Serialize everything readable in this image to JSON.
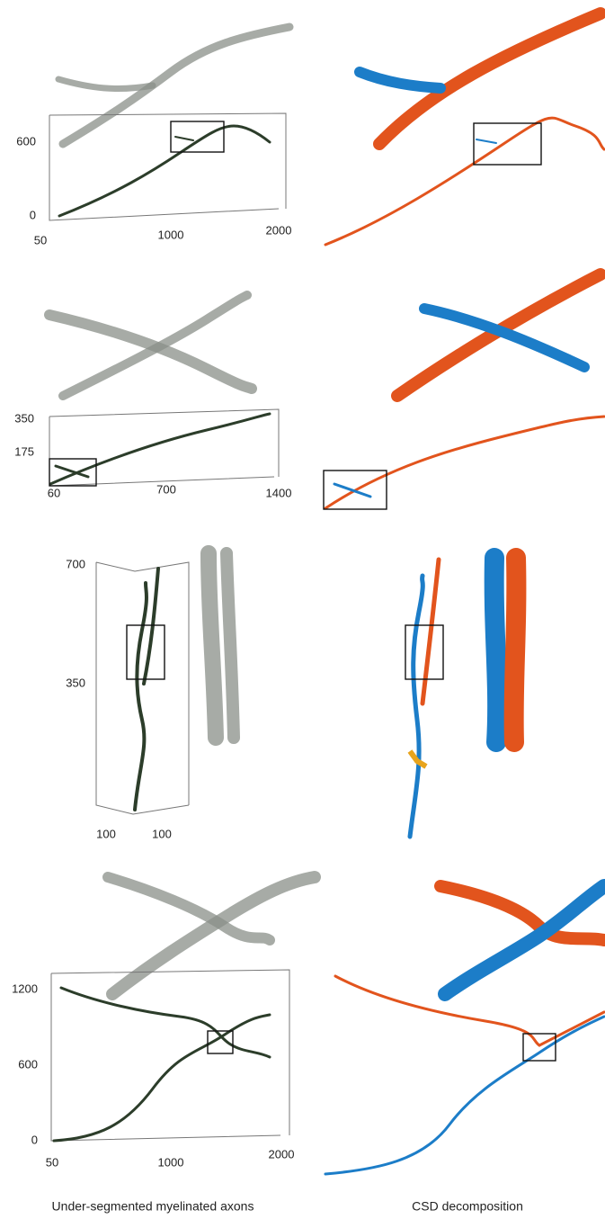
{
  "panels": [
    {
      "y_ticks": [
        "600",
        "0"
      ],
      "x_ticks": [
        "50",
        "1000",
        "2000"
      ]
    },
    {
      "y_ticks": [
        "350",
        "175"
      ],
      "x_ticks": [
        "60",
        "700",
        "1400"
      ]
    },
    {
      "y_ticks": [
        "700",
        "350"
      ],
      "x_ticks": [
        "100",
        "100"
      ]
    },
    {
      "y_ticks": [
        "1200",
        "600",
        "0"
      ],
      "x_ticks": [
        "50",
        "1000",
        "2000"
      ]
    }
  ],
  "captions": [
    "Under-segmented myelinated axons",
    "CSD decomposition"
  ]
}
